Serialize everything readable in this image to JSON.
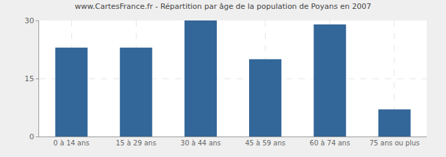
{
  "chart_data": {
    "type": "bar",
    "title": "www.CartesFrance.fr - Répartition par âge de la population de Poyans en 2007",
    "categories": [
      "0 à 14 ans",
      "15 à 29 ans",
      "30 à 44 ans",
      "45 à 59 ans",
      "60 à 74 ans",
      "75 ans ou plus"
    ],
    "values": [
      23,
      23,
      30,
      20,
      29,
      7
    ],
    "color": "#336699",
    "ylim": [
      0,
      30
    ],
    "yticks": [
      0,
      15,
      30
    ],
    "grid": true
  }
}
